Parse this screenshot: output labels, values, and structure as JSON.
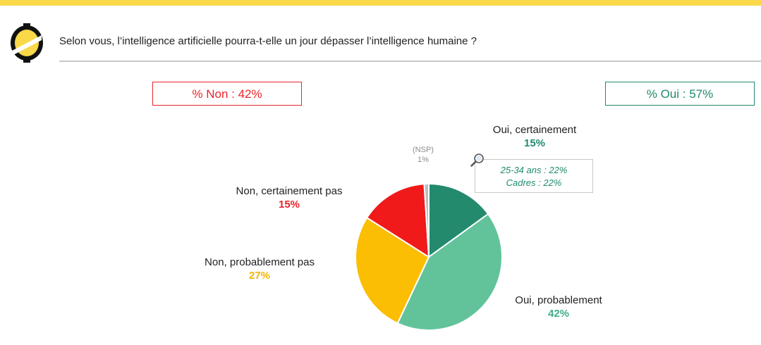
{
  "header": {
    "question": "Selon vous, l’intelligence artificielle pourra-t-elle un jour dépasser l’intelligence humaine ?"
  },
  "totals": {
    "non": "% Non : 42%",
    "oui": "% Oui : 57%"
  },
  "highlight": {
    "line1": "25-34 ans : 22%",
    "line2": "Cadres : 22%"
  },
  "colors": {
    "brand_yellow": "#f9d949",
    "oui_cert": "#238a6e",
    "oui_prob": "#62c39a",
    "non_prob": "#fbbe03",
    "non_cert": "#f01a1a",
    "nsp": "#bdbdbd",
    "oui_text": "#1f8a6e",
    "non_text": "#e8242b"
  },
  "chart_data": {
    "type": "pie",
    "title": "",
    "slices": [
      {
        "label": "Oui, certainement",
        "value": 15,
        "value_label": "15%",
        "color": "#238a6e"
      },
      {
        "label": "Oui, probablement",
        "value": 42,
        "value_label": "42%",
        "color": "#62c39a"
      },
      {
        "label": "Non, probablement pas",
        "value": 27,
        "value_label": "27%",
        "color": "#fbbe03"
      },
      {
        "label": "Non, certainement pas",
        "value": 15,
        "value_label": "15%",
        "color": "#f01a1a"
      },
      {
        "label": "(NSP)",
        "value": 1,
        "value_label": "1%",
        "color": "#bdbdbd"
      }
    ]
  }
}
